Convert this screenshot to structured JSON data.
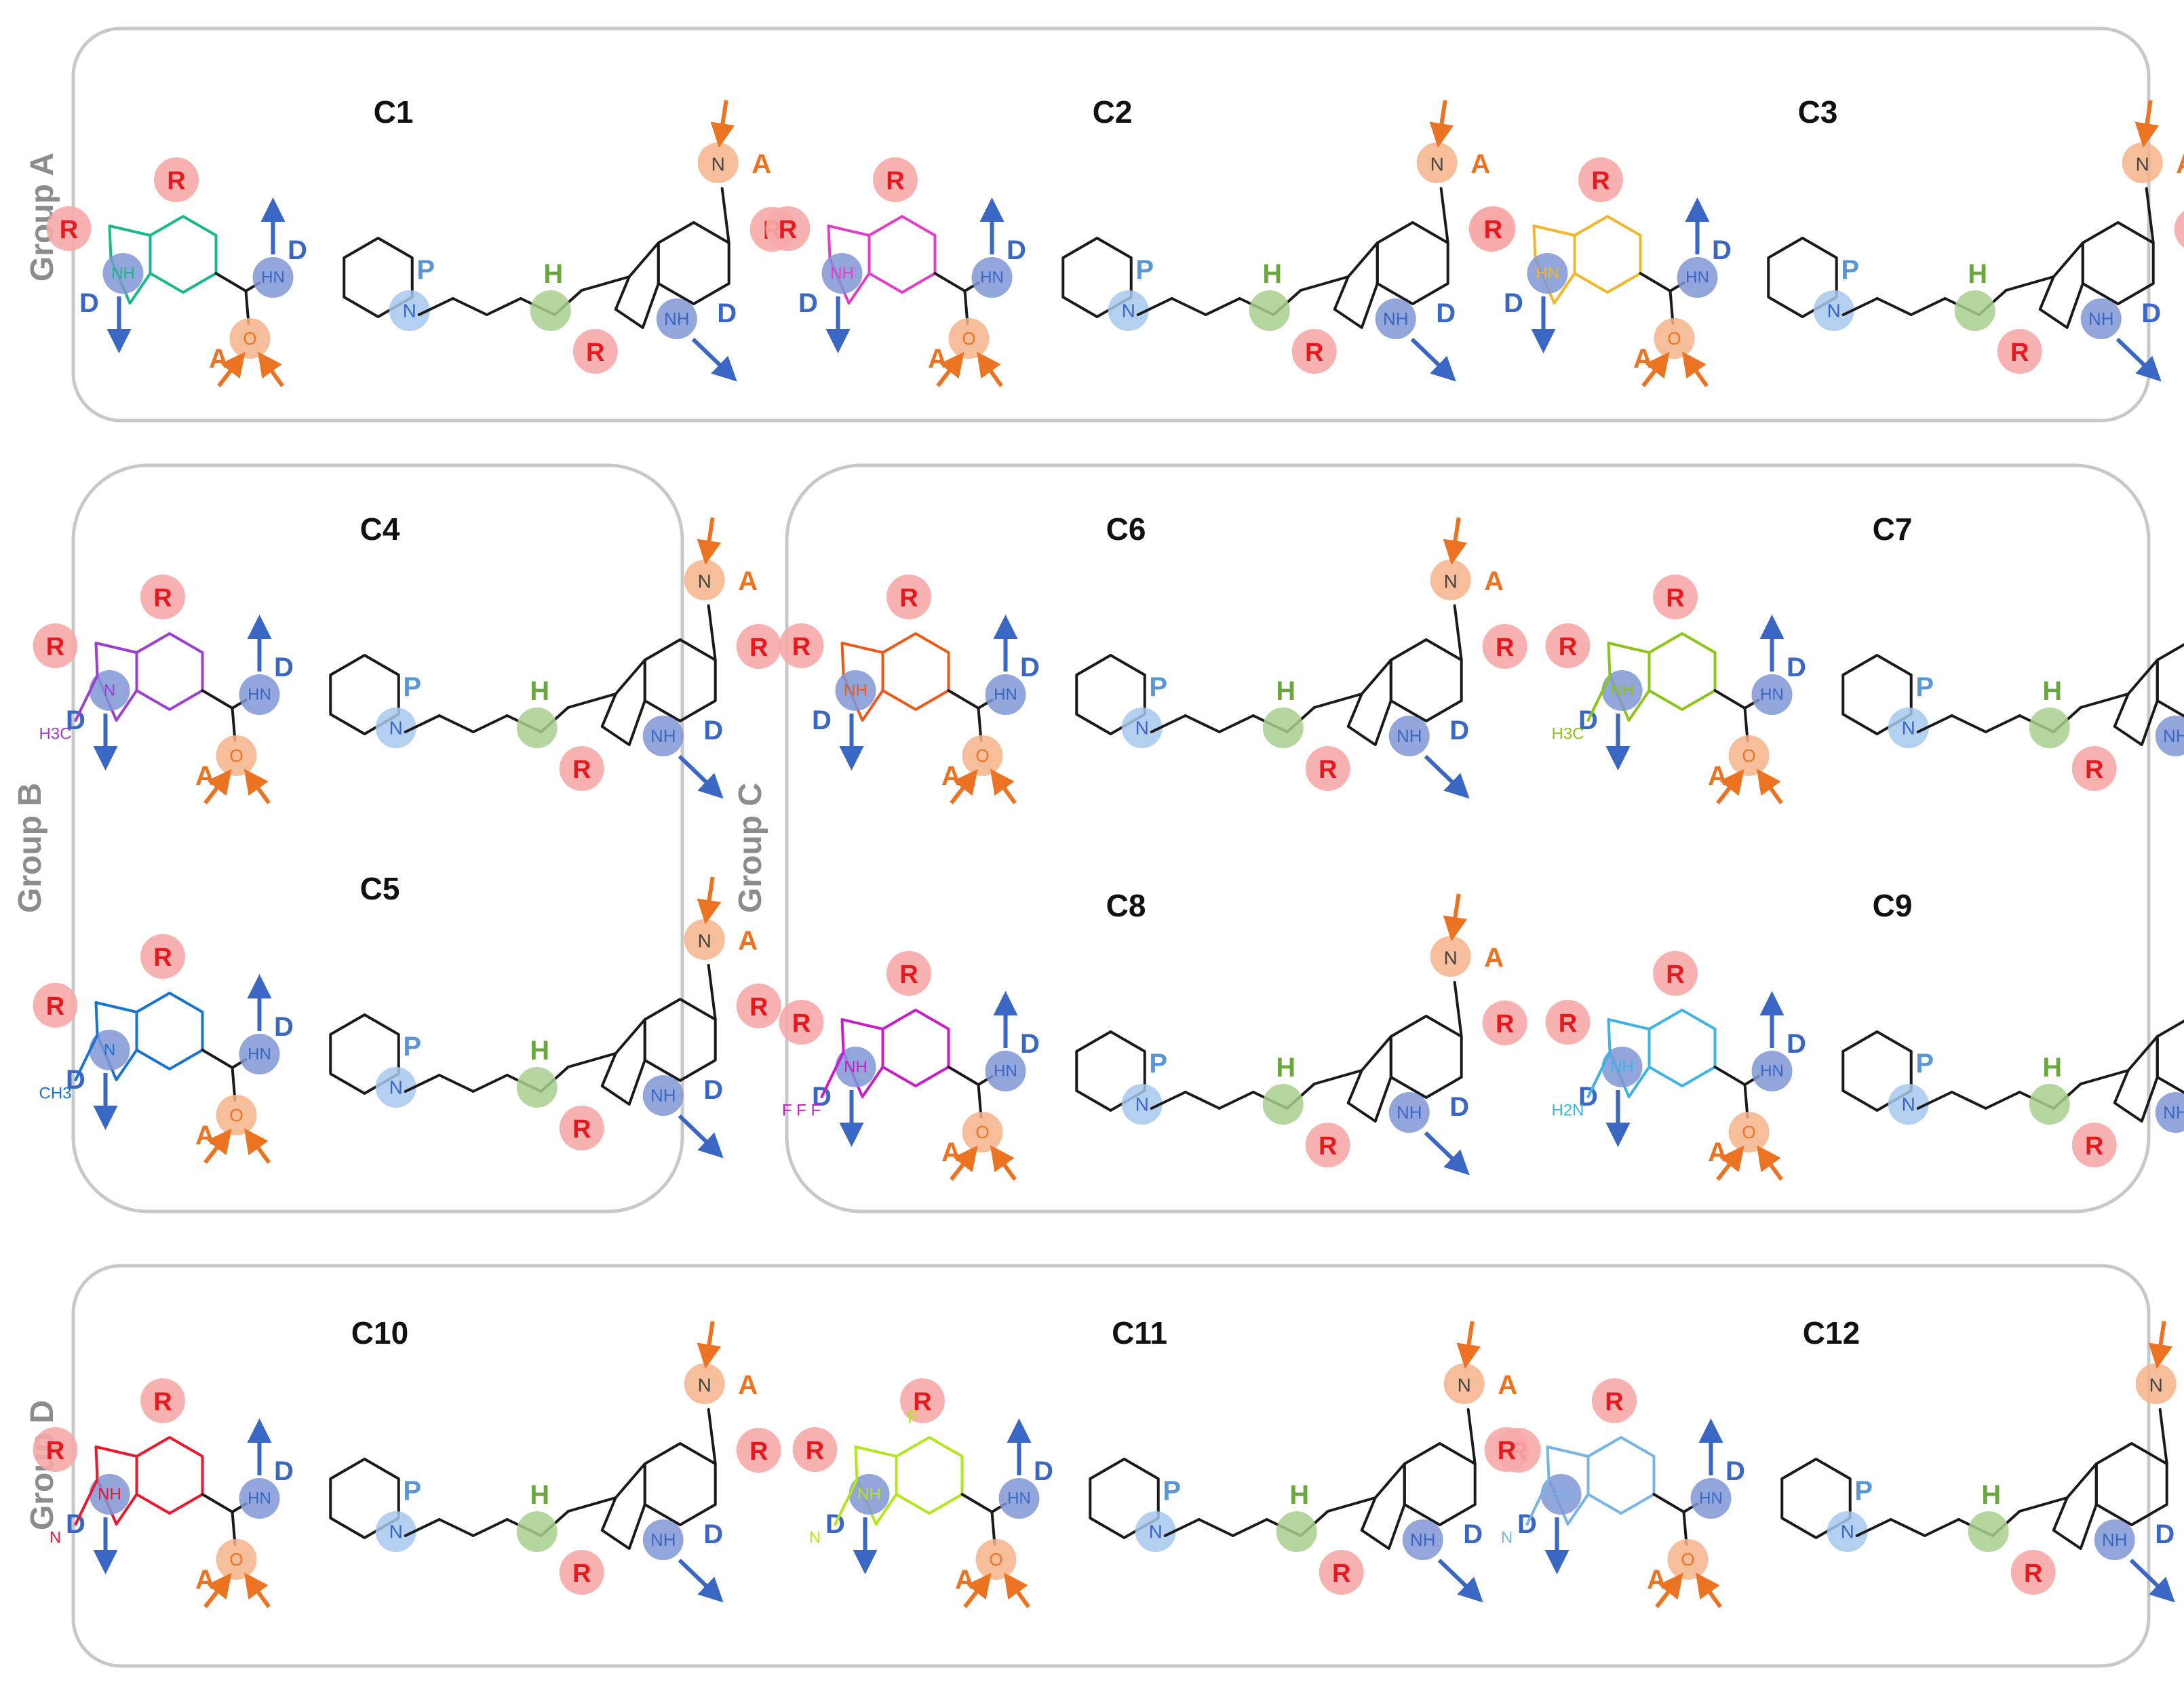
{
  "colors": {
    "R": "#f7a8a8",
    "R_text": "#e8191e",
    "D": "#7f97d6",
    "D_text": "#3a67c4",
    "A": "#f4b388",
    "A_text": "#ec7322",
    "P": "#a6c8ee",
    "P_text": "#5896d6",
    "H": "#a9cf8f",
    "H_text": "#6aa83f",
    "panel_border": "#c8c8c8",
    "bond": "#1a1a1a"
  },
  "groups": [
    {
      "label": "Group A",
      "compounds": [
        "C1",
        "C2",
        "C3"
      ]
    },
    {
      "label": "Group B",
      "compounds": [
        "C4",
        "C5"
      ]
    },
    {
      "label": "Group C",
      "compounds": [
        "C6",
        "C7",
        "C8",
        "C9"
      ]
    },
    {
      "label": "Group D",
      "compounds": [
        "C10",
        "C11",
        "C12"
      ]
    }
  ],
  "compounds": [
    {
      "id": "C1",
      "color": "#19b88c",
      "amide_n": "H\nN",
      "head_n": "N\nH"
    },
    {
      "id": "C2",
      "color": "#e23ec8",
      "amide_n": "H\nN",
      "head_n": "NH"
    },
    {
      "id": "C3",
      "color": "#f2b62a",
      "amide_n": "H\nN",
      "head_n": "HN"
    },
    {
      "id": "C4",
      "color": "#9b3fd0",
      "amide_n": "HN",
      "head_n": "N",
      "substituent": "H3C"
    },
    {
      "id": "C5",
      "color": "#1874d0",
      "amide_n": "HN",
      "head_n": "N",
      "substituent": "CH3"
    },
    {
      "id": "C6",
      "color": "#ec5a1a",
      "amide_n": "HN",
      "head_n": "NH"
    },
    {
      "id": "C7",
      "color": "#8cc41a",
      "amide_n": "HN",
      "head_n": "NH",
      "substituent": "H3C"
    },
    {
      "id": "C8",
      "color": "#c81ec8",
      "amide_n": "HN",
      "head_n": "NH",
      "substituent": "F F F"
    },
    {
      "id": "C9",
      "color": "#3cb4e6",
      "amide_n": "H\nN",
      "head_n": "NH",
      "substituent": "H2N"
    },
    {
      "id": "C10",
      "color": "#e8192e",
      "amide_n": "HN",
      "head_n": "NH",
      "substituent": "N"
    },
    {
      "id": "C11",
      "color": "#b4e61e",
      "amide_n": "HN",
      "head_n": "NH",
      "substituent": "N",
      "halogen": "F"
    },
    {
      "id": "C12",
      "color": "#78b4e6",
      "amide_n": "HN",
      "head_n": "HN",
      "substituent": "N"
    }
  ],
  "feature_labels": {
    "R": "R",
    "D": "D",
    "A": "A",
    "P": "P",
    "H": "H"
  },
  "common_atoms": {
    "nitrile_n": "N",
    "piperidine_n": "N",
    "indole_nh": "NH",
    "carbonyl_o": "O"
  }
}
